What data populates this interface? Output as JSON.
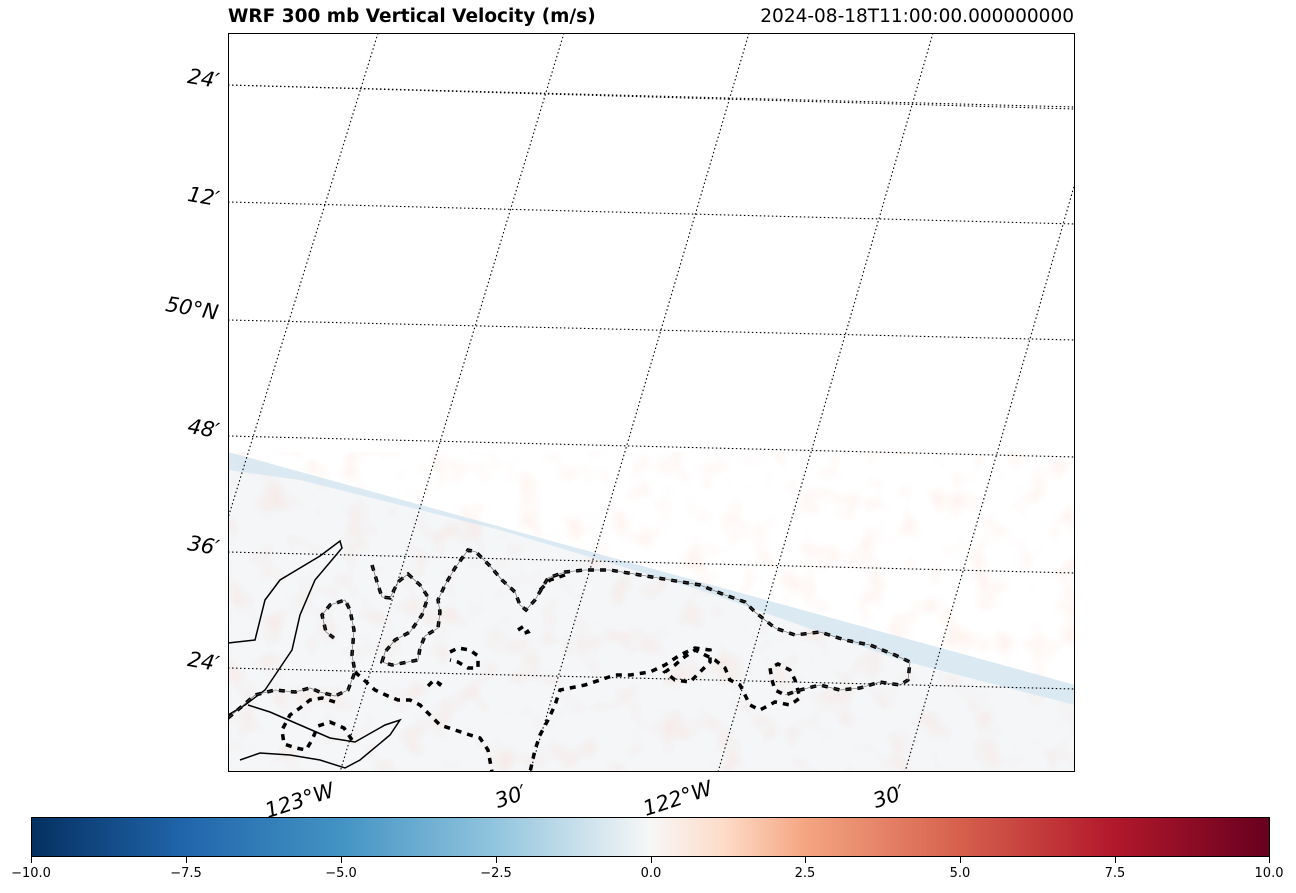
{
  "title": "WRF 300 mb Vertical Velocity (m/s)",
  "timestamp": "2024-08-18T11:00:00.000000000",
  "map": {
    "lat_labels": [
      "24′",
      "12′",
      "50°N",
      "48′",
      "36′",
      "24′"
    ],
    "lon_labels": [
      "123°W",
      "30′",
      "122°W",
      "30′"
    ],
    "gridline_style": "dotted",
    "colormap": "RdBu_r"
  },
  "colorbar": {
    "min": -10.0,
    "max": 10.0,
    "tick_labels": [
      "−10.0",
      "−7.5",
      "−5.0",
      "−2.5",
      "0.0",
      "2.5",
      "5.0",
      "7.5",
      "10.0"
    ],
    "colors": [
      "#053061",
      "#2166ac",
      "#4393c3",
      "#92c5de",
      "#f7f7f7",
      "#fddbc7",
      "#f4a582",
      "#d6604d",
      "#b2182b",
      "#67001f"
    ]
  }
}
